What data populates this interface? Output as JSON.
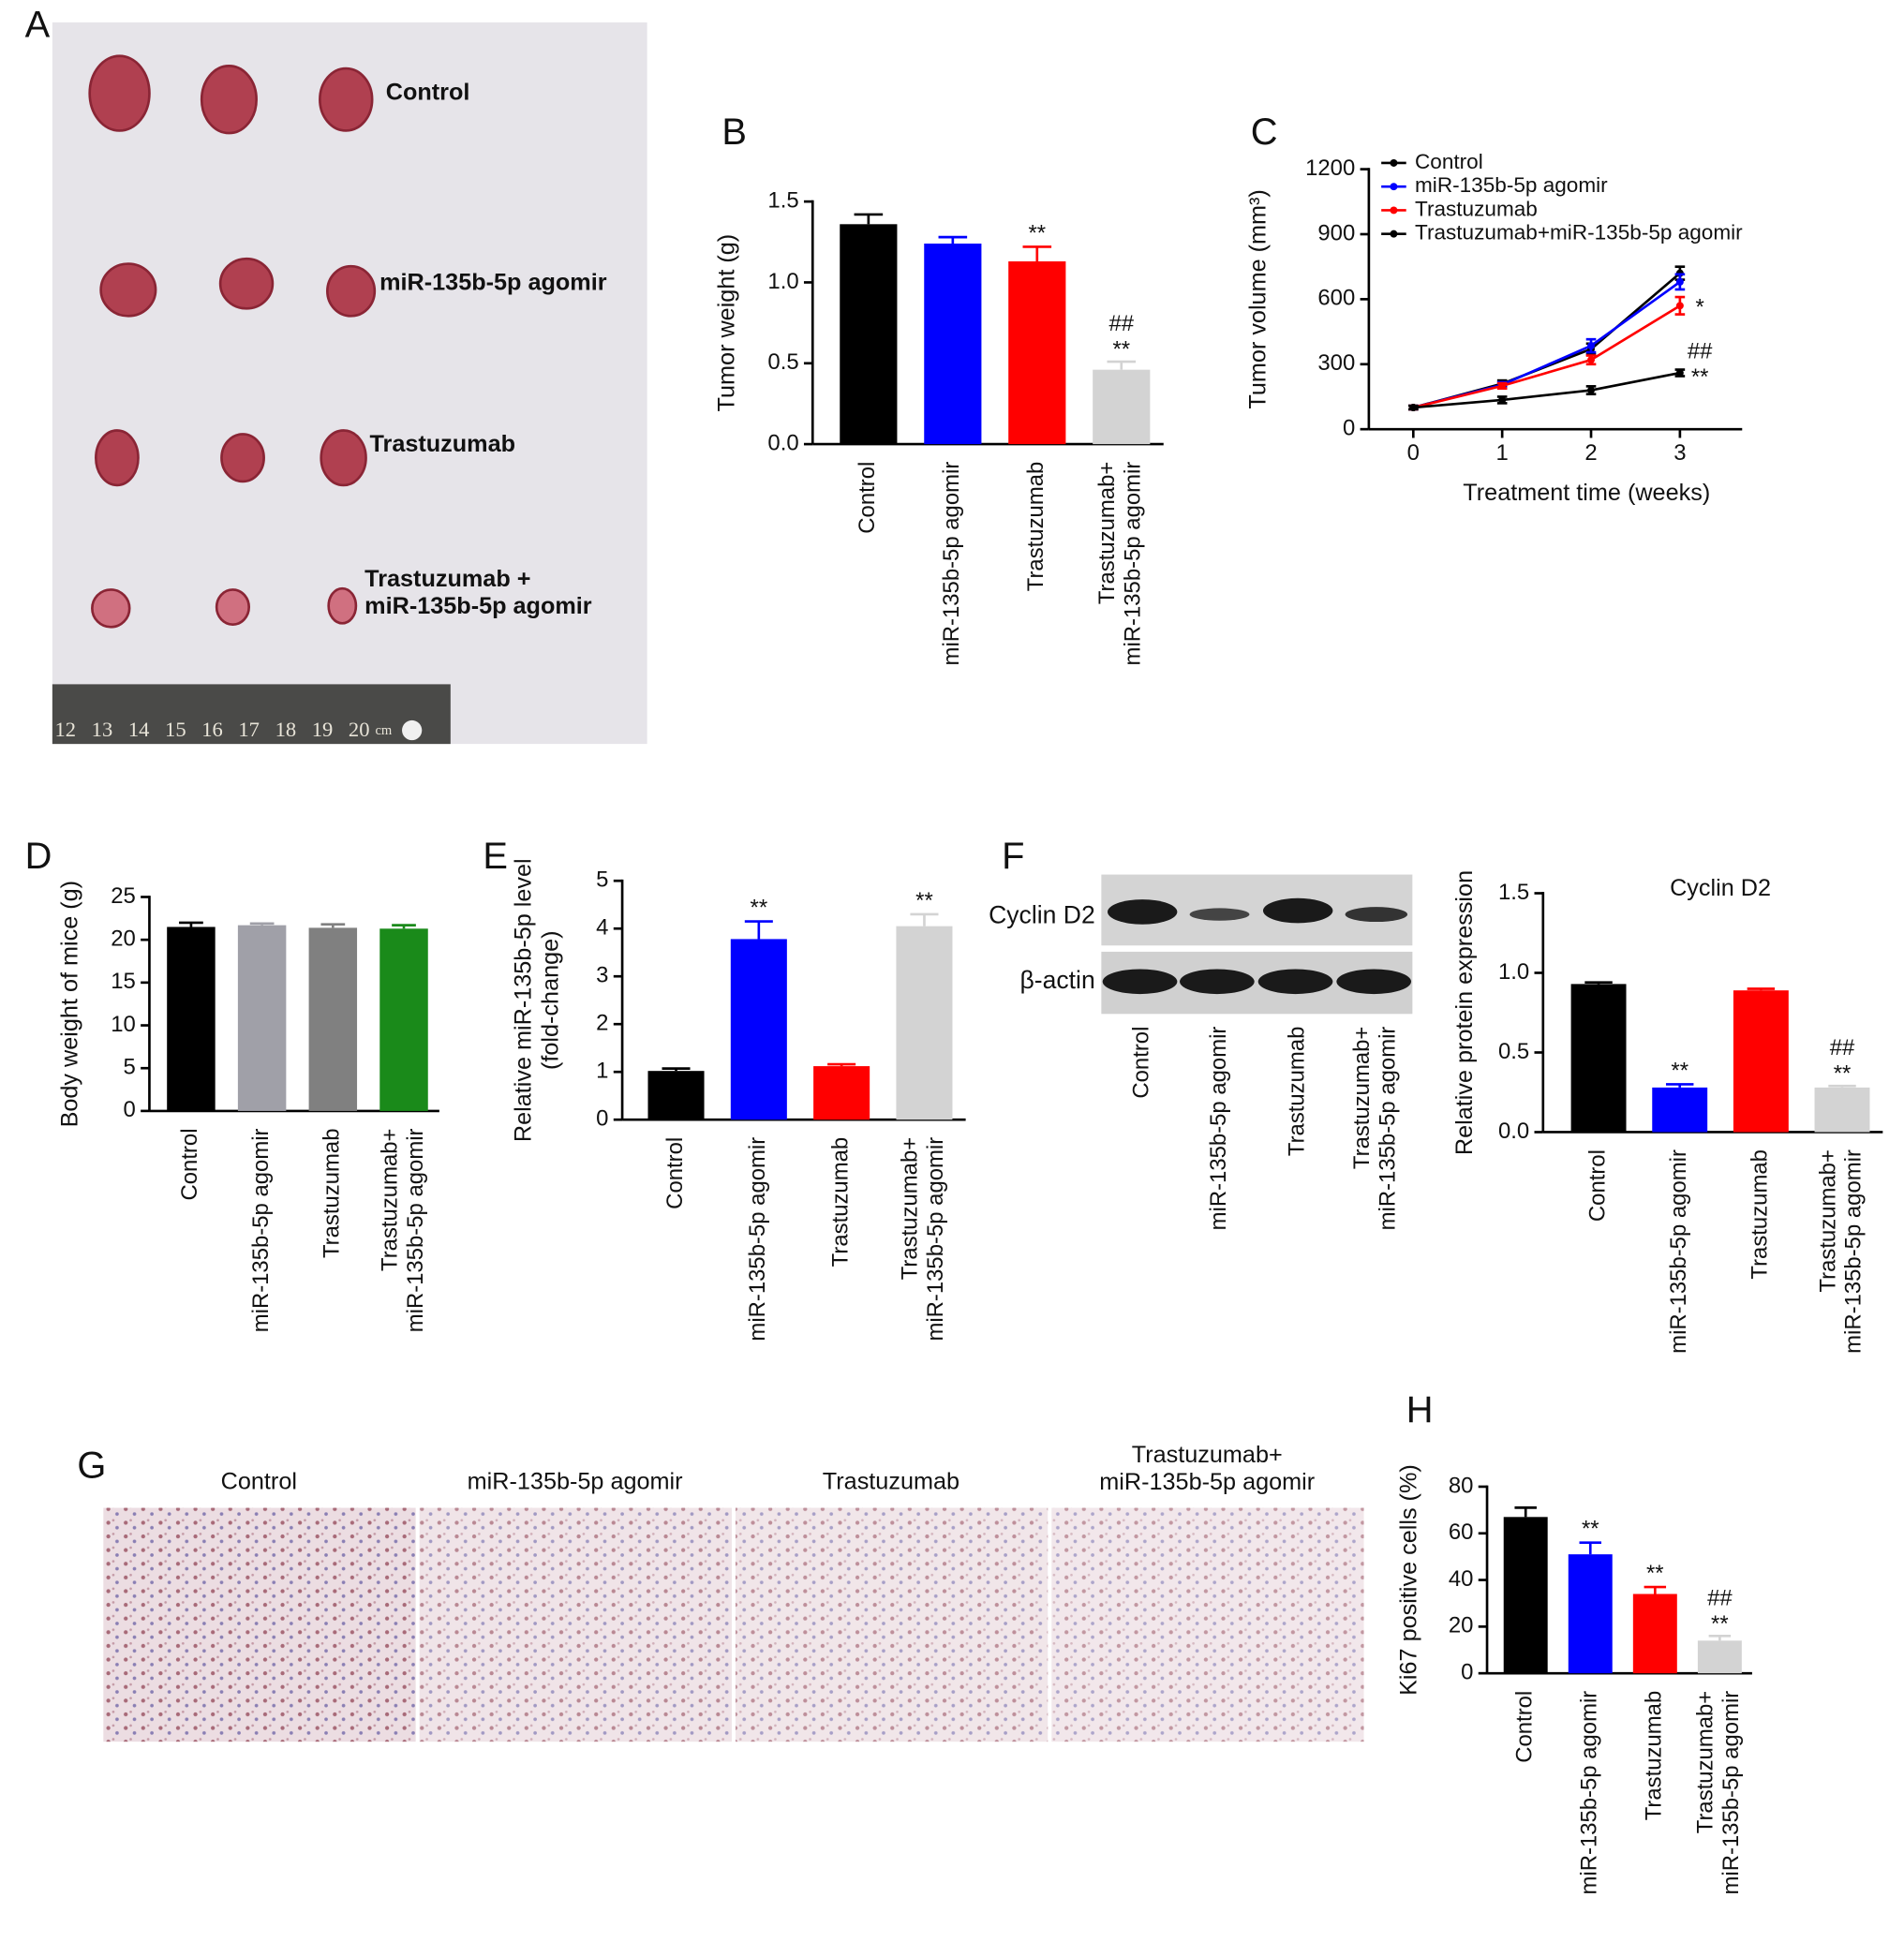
{
  "panel_labels": [
    "A",
    "B",
    "C",
    "D",
    "E",
    "F",
    "G",
    "H"
  ],
  "photo_a": {
    "labels": [
      "Control",
      "miR-135b-5p agomir",
      "Trastuzumab",
      "Trastuzumab +\nmiR-135b-5p agomir"
    ],
    "ruler": [
      "12",
      "13",
      "14",
      "15",
      "16",
      "17",
      "18",
      "19",
      "20",
      "cm"
    ]
  },
  "blot": {
    "rows": [
      "Cyclin D2",
      "β-actin"
    ],
    "lanes": [
      "Control",
      "miR-135b-5p agomir",
      "Trastuzumab",
      "Trastuzumab+\nmiR-135b-5p agomir"
    ]
  },
  "photo_g": {
    "labels": [
      "Control",
      "miR-135b-5p agomir",
      "Trastuzumab",
      "Trastuzumab+\nmiR-135b-5p agomir"
    ]
  },
  "chart_data": [
    {
      "type": "bar",
      "ylabel": "Tumor weight (g)",
      "categories": [
        "Control",
        "miR-135b-5p agomir",
        "Trastuzumab",
        "Trastuzumab+\nmiR-135b-5p agomir"
      ],
      "values": [
        1.36,
        1.24,
        1.13,
        0.46
      ],
      "errors": [
        0.06,
        0.04,
        0.09,
        0.05
      ],
      "colors": [
        "#000000",
        "#0000ff",
        "#ff0000",
        "#d3d3d3"
      ],
      "annotations": [
        null,
        null,
        "**",
        "##\n**"
      ],
      "ylim": [
        0,
        1.5
      ],
      "yticks": [
        {
          "value": 0,
          "label": "0.0"
        },
        0.5,
        {
          "value": 1,
          "label": "1.0"
        },
        1.5
      ]
    },
    {
      "type": "line",
      "ylabel": "Tumor volume (mm³)",
      "xlabel": "Treatment time (weeks)",
      "x": [
        0,
        1,
        2,
        3
      ],
      "xlim": [
        -0.5,
        3.7
      ],
      "xticks": [
        0,
        1,
        2,
        3
      ],
      "ylim": [
        0,
        1200
      ],
      "yticks": [
        0,
        300,
        600,
        900,
        1200
      ],
      "series": [
        {
          "name": "Control",
          "color": "#000000",
          "values": [
            100,
            210,
            370,
            720
          ],
          "errors": [
            8,
            15,
            25,
            30
          ]
        },
        {
          "name": "miR-135b-5p agomir",
          "color": "#0000ff",
          "values": [
            100,
            205,
            385,
            680
          ],
          "errors": [
            8,
            12,
            30,
            35
          ]
        },
        {
          "name": "Trastuzumab",
          "color": "#ff0000",
          "values": [
            100,
            200,
            320,
            570
          ],
          "errors": [
            8,
            12,
            20,
            40
          ],
          "annotation": "*"
        },
        {
          "name": "Trastuzumab+miR-135b-5p agomir",
          "color": "#000000",
          "values": [
            100,
            135,
            180,
            260
          ],
          "errors": [
            8,
            15,
            18,
            15
          ],
          "annotation": "##\n**"
        }
      ]
    },
    {
      "type": "bar",
      "ylabel": "Body weight of mice (g)",
      "categories": [
        "Control",
        "miR-135b-5p agomir",
        "Trastuzumab",
        "Trastuzumab+\nmiR-135b-5p agomir"
      ],
      "values": [
        21.5,
        21.7,
        21.4,
        21.3
      ],
      "errors": [
        0.5,
        0.2,
        0.4,
        0.4
      ],
      "colors": [
        "#000000",
        "#a0a0a8",
        "#808080",
        "#1a8a1a"
      ],
      "ylim": [
        0,
        25
      ],
      "yticks": [
        0,
        5,
        10,
        15,
        20,
        25
      ]
    },
    {
      "type": "bar",
      "ylabel": "Relative miR-135b-5p level\n(fold-change)",
      "categories": [
        "Control",
        "miR-135b-5p agomir",
        "Trastuzumab",
        "Trastuzumab+\nmiR-135b-5p agomir"
      ],
      "values": [
        1.02,
        3.78,
        1.12,
        4.05
      ],
      "errors": [
        0.05,
        0.37,
        0.04,
        0.25
      ],
      "colors": [
        "#000000",
        "#0000ff",
        "#ff0000",
        "#d3d3d3"
      ],
      "annotations": [
        null,
        "**",
        null,
        "**"
      ],
      "ylim": [
        0,
        5
      ],
      "yticks": [
        0,
        1,
        2,
        3,
        4,
        5
      ]
    },
    {
      "type": "bar",
      "title": "Cyclin D2",
      "ylabel": "Relative protein expression",
      "categories": [
        "Control",
        "miR-135b-5p agomir",
        "Trastuzumab",
        "Trastuzumab+\nmiR-135b-5p agomir"
      ],
      "values": [
        0.93,
        0.28,
        0.89,
        0.28
      ],
      "errors": [
        0.01,
        0.02,
        0.01,
        0.01
      ],
      "colors": [
        "#000000",
        "#0000ff",
        "#ff0000",
        "#d3d3d3"
      ],
      "annotations": [
        null,
        "**",
        null,
        "##\n**"
      ],
      "ylim": [
        0,
        1.5
      ],
      "yticks": [
        {
          "value": 0,
          "label": "0.0"
        },
        0.5,
        {
          "value": 1,
          "label": "1.0"
        },
        1.5
      ]
    },
    {
      "type": "bar",
      "ylabel": "Ki67 positive cells (%)",
      "categories": [
        "Control",
        "miR-135b-5p agomir",
        "Trastuzumab",
        "Trastuzumab+\nmiR-135b-5p agomir"
      ],
      "values": [
        67,
        51,
        34,
        14
      ],
      "errors": [
        4,
        5,
        3,
        2
      ],
      "colors": [
        "#000000",
        "#0000ff",
        "#ff0000",
        "#d3d3d3"
      ],
      "annotations": [
        null,
        "**",
        "**",
        "##\n**"
      ],
      "ylim": [
        0,
        80
      ],
      "yticks": [
        0,
        20,
        40,
        60,
        80
      ]
    }
  ]
}
